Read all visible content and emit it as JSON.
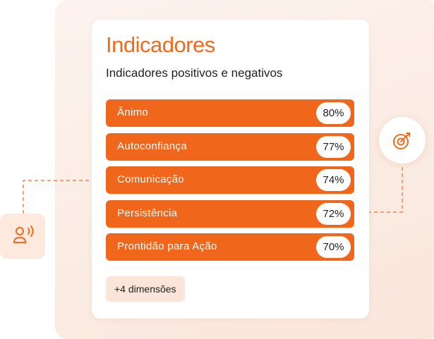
{
  "header": {
    "title": "Indicadores",
    "subtitle": "Indicadores positivos e negativos"
  },
  "items": [
    {
      "label": "Ânimo",
      "value": "80%"
    },
    {
      "label": "Autoconfiança",
      "value": "77%"
    },
    {
      "label": "Comunicação",
      "value": "74%"
    },
    {
      "label": "Persistência",
      "value": "72%"
    },
    {
      "label": "Prontidão para Ação",
      "value": "70%"
    }
  ],
  "more_button": "+4 dimensões"
}
